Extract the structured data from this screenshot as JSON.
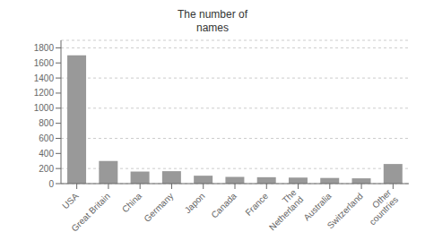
{
  "chart_data": {
    "type": "bar",
    "title": "The number of\nnames",
    "categories": [
      "USA",
      "Great Britain",
      "China",
      "Germany",
      "Japon",
      "Canada",
      "France",
      "The\nNetherland",
      "Australia",
      "Switzerland",
      "Other\ncountries"
    ],
    "values": [
      1700,
      300,
      160,
      165,
      105,
      90,
      85,
      80,
      75,
      70,
      260
    ],
    "color": "#999999",
    "ylim": [
      0,
      1900
    ],
    "yticks": [
      0,
      200,
      400,
      600,
      800,
      1000,
      1200,
      1400,
      1600,
      1800
    ],
    "grid": true
  }
}
